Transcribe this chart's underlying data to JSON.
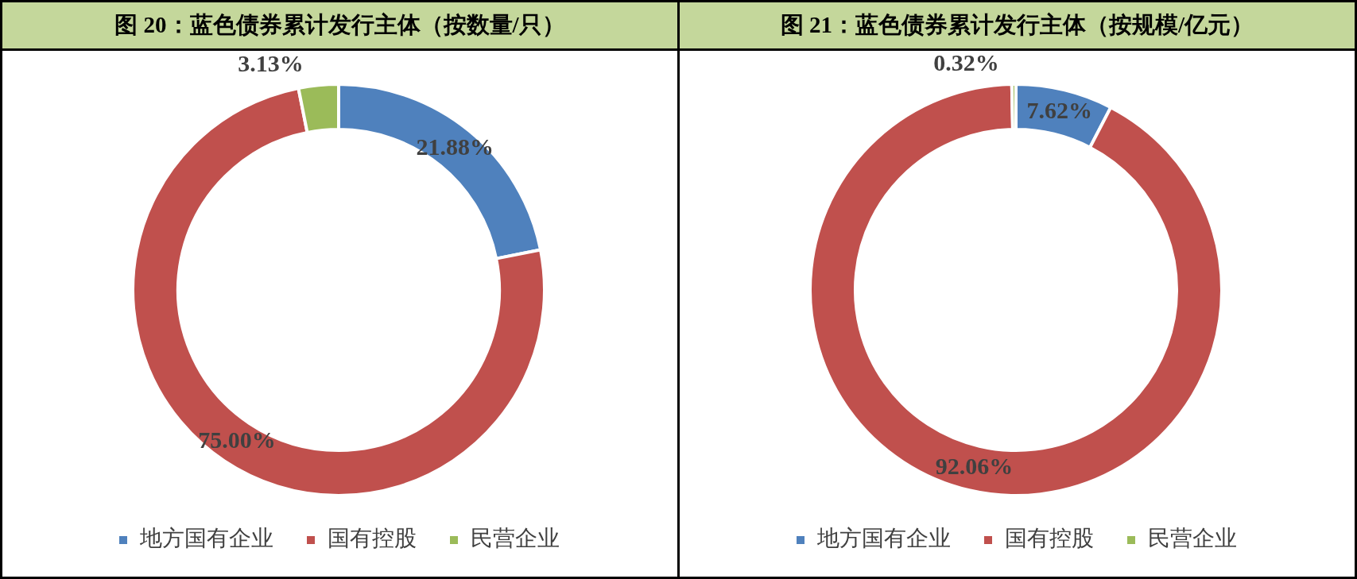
{
  "chart_data": [
    {
      "type": "donut",
      "title": "图 20：蓝色债券累计发行主体（按数量/只）",
      "categories": [
        "地方国有企业",
        "国有控股",
        "民营企业"
      ],
      "values": [
        21.88,
        75,
        3.13
      ],
      "colors": [
        "#4f81bd",
        "#c0504d",
        "#9bbb59"
      ],
      "value_labels": [
        "21.88%",
        "75.00%",
        "3.13%"
      ],
      "legend": "bottom"
    },
    {
      "type": "donut",
      "title": "图 21：蓝色债券累计发行主体（按规模/亿元）",
      "categories": [
        "地方国有企业",
        "国有控股",
        "民营企业"
      ],
      "values": [
        7.62,
        92.06,
        0.32
      ],
      "colors": [
        "#4f81bd",
        "#c0504d",
        "#9bbb59"
      ],
      "value_labels": [
        "7.62%",
        "92.06%",
        "0.32%"
      ],
      "legend": "bottom"
    }
  ]
}
